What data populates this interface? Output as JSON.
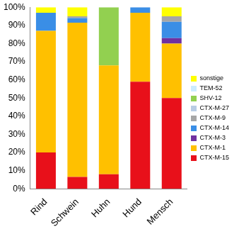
{
  "chart_data": {
    "type": "bar",
    "stacked": true,
    "legend": "right",
    "grid": false,
    "categories": [
      "Rind",
      "Schwein",
      "Huhn",
      "Hund",
      "Mensch"
    ],
    "ylim": [
      0,
      100
    ],
    "yticks": [
      {
        "value": 0,
        "label": "0%"
      },
      {
        "value": 10,
        "label": "10%"
      },
      {
        "value": 20,
        "label": "20%"
      },
      {
        "value": 30,
        "label": "30%"
      },
      {
        "value": 40,
        "label": "40%"
      },
      {
        "value": 50,
        "label": "50%"
      },
      {
        "value": 60,
        "label": "60%"
      },
      {
        "value": 70,
        "label": "70%"
      },
      {
        "value": 80,
        "label": "80%"
      },
      {
        "value": 90,
        "label": "90%"
      },
      {
        "value": 100,
        "label": "100%"
      }
    ],
    "series": [
      {
        "name": "CTX-M-15",
        "color": "#e8101a",
        "values": [
          20,
          6.5,
          8,
          59,
          50
        ]
      },
      {
        "name": "CTX-M-1",
        "color": "#ffc000",
        "values": [
          67,
          85,
          60,
          38,
          30
        ]
      },
      {
        "name": "CTX-M-3",
        "color": "#7030a0",
        "values": [
          0,
          0,
          0,
          0,
          3
        ]
      },
      {
        "name": "CTX-M-14",
        "color": "#3a8ee6",
        "values": [
          10,
          2.5,
          0,
          3,
          9
        ]
      },
      {
        "name": "CTX-M-9",
        "color": "#a6a6a6",
        "values": [
          0,
          1,
          0,
          0,
          3
        ]
      },
      {
        "name": "CTX-M-27",
        "color": "#b8cce4",
        "values": [
          0,
          0,
          0,
          0,
          0
        ]
      },
      {
        "name": "SHV-12",
        "color": "#92d050",
        "values": [
          0,
          0,
          32,
          0,
          0
        ]
      },
      {
        "name": "TEM-52",
        "color": "#ccecff",
        "values": [
          0,
          0,
          0,
          0,
          0
        ]
      },
      {
        "name": "sonstige",
        "color": "#ffff00",
        "values": [
          3,
          5,
          0,
          0,
          5
        ]
      }
    ]
  }
}
